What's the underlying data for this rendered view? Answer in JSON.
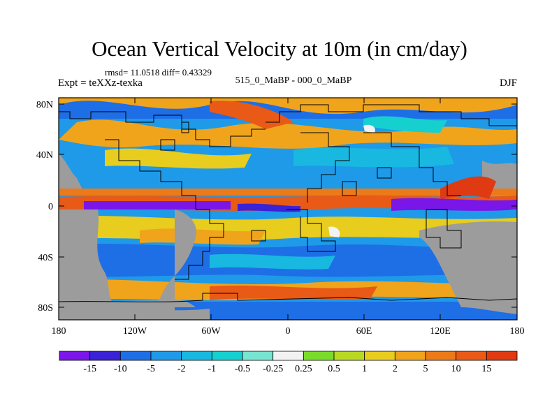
{
  "title": "Ocean Vertical Velocity at 10m (in cm/day)",
  "stats": "rmsd= 11.0518 diff= 0.43329",
  "expt": "Expt = teXXz-texka",
  "subtitle": "515_0_MaBP - 000_0_MaBP",
  "season": "DJF",
  "axes": {
    "lat_labels": [
      "80N",
      "40N",
      "0",
      "40S",
      "80S"
    ],
    "lat_values": [
      80,
      40,
      0,
      -40,
      -80
    ],
    "lon_labels": [
      "180",
      "120W",
      "60W",
      "0",
      "60E",
      "120E",
      "180"
    ],
    "lon_values": [
      -180,
      -120,
      -60,
      0,
      60,
      120,
      180
    ]
  },
  "colorbar": {
    "labels": [
      "-15",
      "-10",
      "-5",
      "-2",
      "-1",
      "-0.5",
      "-0.25",
      "0.25",
      "0.5",
      "1",
      "2",
      "5",
      "10",
      "15"
    ],
    "colors": [
      "#7a16e8",
      "#3a22d6",
      "#1e6ee6",
      "#1e9ae8",
      "#18b8e0",
      "#16d0d0",
      "#78e4d2",
      "#f2f2f2",
      "#7adc2a",
      "#b8d822",
      "#e8cc1e",
      "#f0a41c",
      "#ec7a18",
      "#e85a16",
      "#e03a12"
    ]
  },
  "land_color": "#9c9c9c"
}
